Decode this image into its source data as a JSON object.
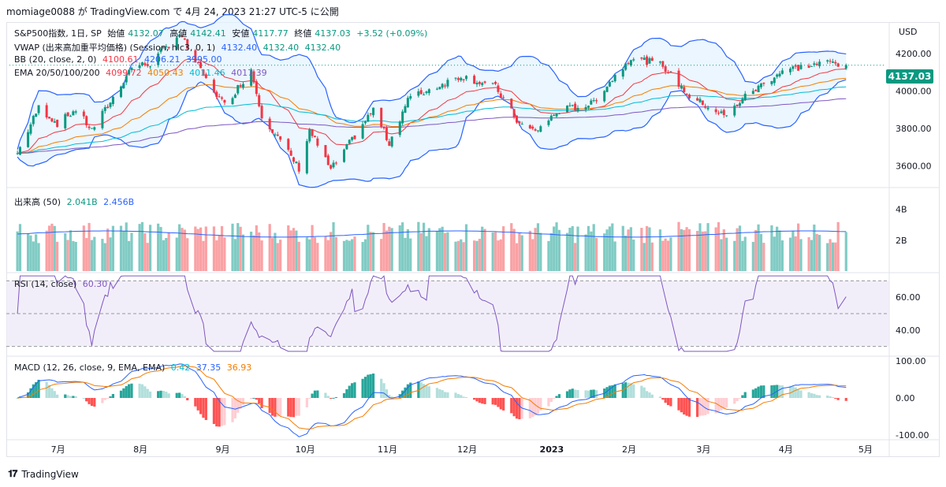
{
  "header": {
    "text": "momiage0088 が TradingView.com で 4月 24, 2023 21:27 UTC-5 に公開"
  },
  "symbol_legend": {
    "name": "S&P500指数, 1日, SP",
    "open_label": "始値",
    "open": "4132.07",
    "high_label": "高値",
    "high": "4142.41",
    "low_label": "安値",
    "low": "4117.77",
    "close_label": "終値",
    "close": "4137.03",
    "change": "+3.52 (+0.09%)"
  },
  "vwap_legend": {
    "name": "VWAP (出来高加重平均価格) (Session, hlc3, 0, 1)",
    "v1": "4132.40",
    "v2": "4132.40",
    "v3": "4132.40"
  },
  "bb_legend": {
    "name": "BB (20, close, 2, 0)",
    "v1": "4100.61",
    "v2": "4206.21",
    "v3": "3995.00"
  },
  "ema_legend": {
    "name": "EMA 20/50/100/200",
    "v1": "4099.72",
    "v2": "4050.43",
    "v3": "4011.46",
    "v4": "4017.39"
  },
  "volume_legend": {
    "name": "出来高 (50)",
    "v1": "2.041B",
    "v2": "2.456B"
  },
  "rsi_legend": {
    "name": "RSI (14, close)",
    "v1": "60.30"
  },
  "macd_legend": {
    "name": "MACD (12, 26, close, 9, EMA, EMA)",
    "v1": "0.42",
    "v2": "37.35",
    "v3": "36.93"
  },
  "currency": "USD",
  "last_price": "4137.03",
  "price_axis": [
    "4200.00",
    "4000.00",
    "3800.00",
    "3600.00"
  ],
  "volume_axis": [
    "4B",
    "2B"
  ],
  "rsi_axis": [
    "60.00",
    "40.00"
  ],
  "macd_axis": [
    "100.00",
    "0.00",
    "-100.00"
  ],
  "time_axis": [
    "7月",
    "8月",
    "9月",
    "10月",
    "11月",
    "12月",
    "2023",
    "2月",
    "3月",
    "4月",
    "5月"
  ],
  "footer": {
    "brand": "TradingView"
  },
  "colors": {
    "up": "#089981",
    "down": "#f23645",
    "bb": "#2962ff",
    "rsi": "#7e57c2",
    "macd": "#2962ff",
    "signal": "#f57c00"
  },
  "chart_data": {
    "type": "candlestick",
    "title": "S&P500指数, 1日, SP",
    "x_range": [
      "2022-06",
      "2023-04-24"
    ],
    "price_ylim": [
      3500,
      4300
    ],
    "close_path": [
      [
        "2022-06-16",
        3667
      ],
      [
        "2022-06-24",
        3912
      ],
      [
        "2022-07-01",
        3825
      ],
      [
        "2022-07-08",
        3899
      ],
      [
        "2022-07-14",
        3790
      ],
      [
        "2022-07-22",
        3962
      ],
      [
        "2022-07-29",
        4130
      ],
      [
        "2022-08-05",
        4145
      ],
      [
        "2022-08-16",
        4305
      ],
      [
        "2022-08-26",
        4057
      ],
      [
        "2022-09-02",
        3924
      ],
      [
        "2022-09-12",
        4110
      ],
      [
        "2022-09-16",
        3873
      ],
      [
        "2022-09-30",
        3586
      ],
      [
        "2022-10-04",
        3790
      ],
      [
        "2022-10-12",
        3577
      ],
      [
        "2022-10-28",
        3901
      ],
      [
        "2022-11-03",
        3720
      ],
      [
        "2022-11-10",
        3956
      ],
      [
        "2022-11-30",
        4080
      ],
      [
        "2022-12-13",
        4019
      ],
      [
        "2022-12-22",
        3822
      ],
      [
        "2022-12-28",
        3783
      ],
      [
        "2023-01-06",
        3895
      ],
      [
        "2023-01-18",
        3929
      ],
      [
        "2023-02-02",
        4180
      ],
      [
        "2023-02-14",
        4136
      ],
      [
        "2023-02-24",
        3970
      ],
      [
        "2023-03-10",
        3862
      ],
      [
        "2023-03-16",
        3960
      ],
      [
        "2023-03-31",
        4109
      ],
      [
        "2023-04-18",
        4154
      ],
      [
        "2023-04-24",
        4137
      ]
    ],
    "bollinger": {
      "upper": 4206.21,
      "middle": 4100.61,
      "lower": 3995.0
    },
    "ema": {
      "ema20": 4099.72,
      "ema50": 4050.43,
      "ema100": 4011.46,
      "ema200": 4017.39
    },
    "volume": {
      "last": "2.041B",
      "ma50": "2.456B"
    },
    "rsi": {
      "last": 60.3,
      "ylim": [
        30,
        70
      ],
      "bands": [
        70,
        50,
        30
      ]
    },
    "macd": {
      "macd": 37.35,
      "signal": 36.93,
      "histogram": 0.42,
      "ylim": [
        -100,
        100
      ]
    }
  }
}
